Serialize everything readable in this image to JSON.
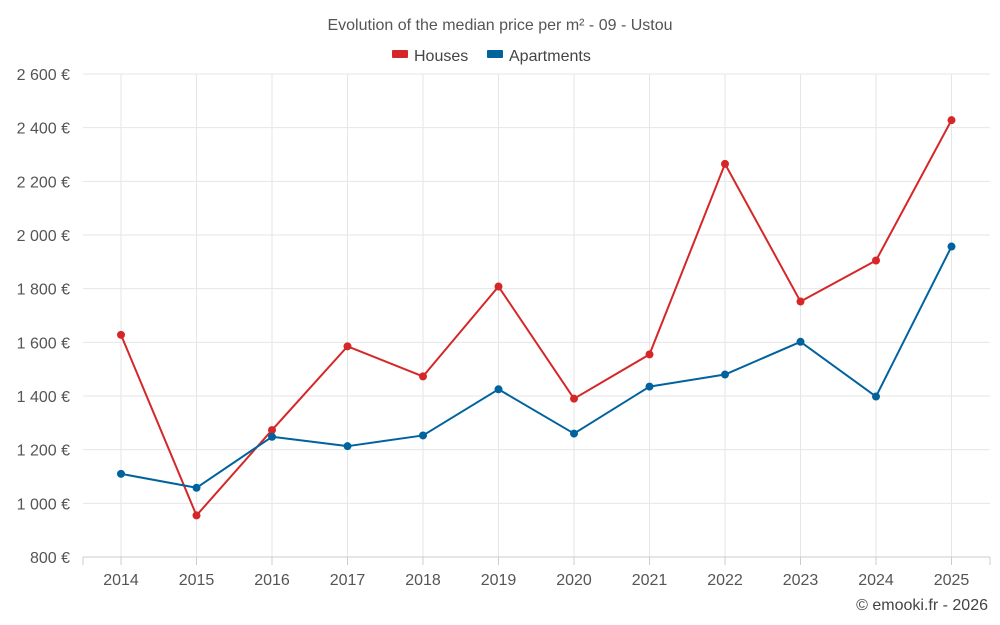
{
  "chart_data": {
    "type": "line",
    "title": "Evolution of the median price per m² - 09 - Ustou",
    "categories": [
      "2014",
      "2015",
      "2016",
      "2017",
      "2018",
      "2019",
      "2020",
      "2021",
      "2022",
      "2023",
      "2024",
      "2025"
    ],
    "series": [
      {
        "name": "Houses",
        "color": "#d62728",
        "values": [
          1628,
          955,
          1273,
          1585,
          1473,
          1808,
          1390,
          1555,
          2265,
          1752,
          1905,
          2428
        ]
      },
      {
        "name": "Apartments",
        "color": "#00639e",
        "values": [
          1110,
          1058,
          1248,
          1213,
          1253,
          1425,
          1260,
          1435,
          1480,
          1602,
          1398,
          1957
        ]
      }
    ],
    "ylim": [
      800,
      2600
    ],
    "yticks": [
      800,
      1000,
      1200,
      1400,
      1600,
      1800,
      2000,
      2200,
      2400,
      2600
    ],
    "ytick_labels": [
      "800 €",
      "1 000 €",
      "1 200 €",
      "1 400 €",
      "1 600 €",
      "1 800 €",
      "2 000 €",
      "2 200 €",
      "2 400 €",
      "2 600 €"
    ],
    "xlabel": "",
    "ylabel": "",
    "grid": true,
    "legend_position": "top-center",
    "credit": "© emooki.fr - 2026"
  }
}
